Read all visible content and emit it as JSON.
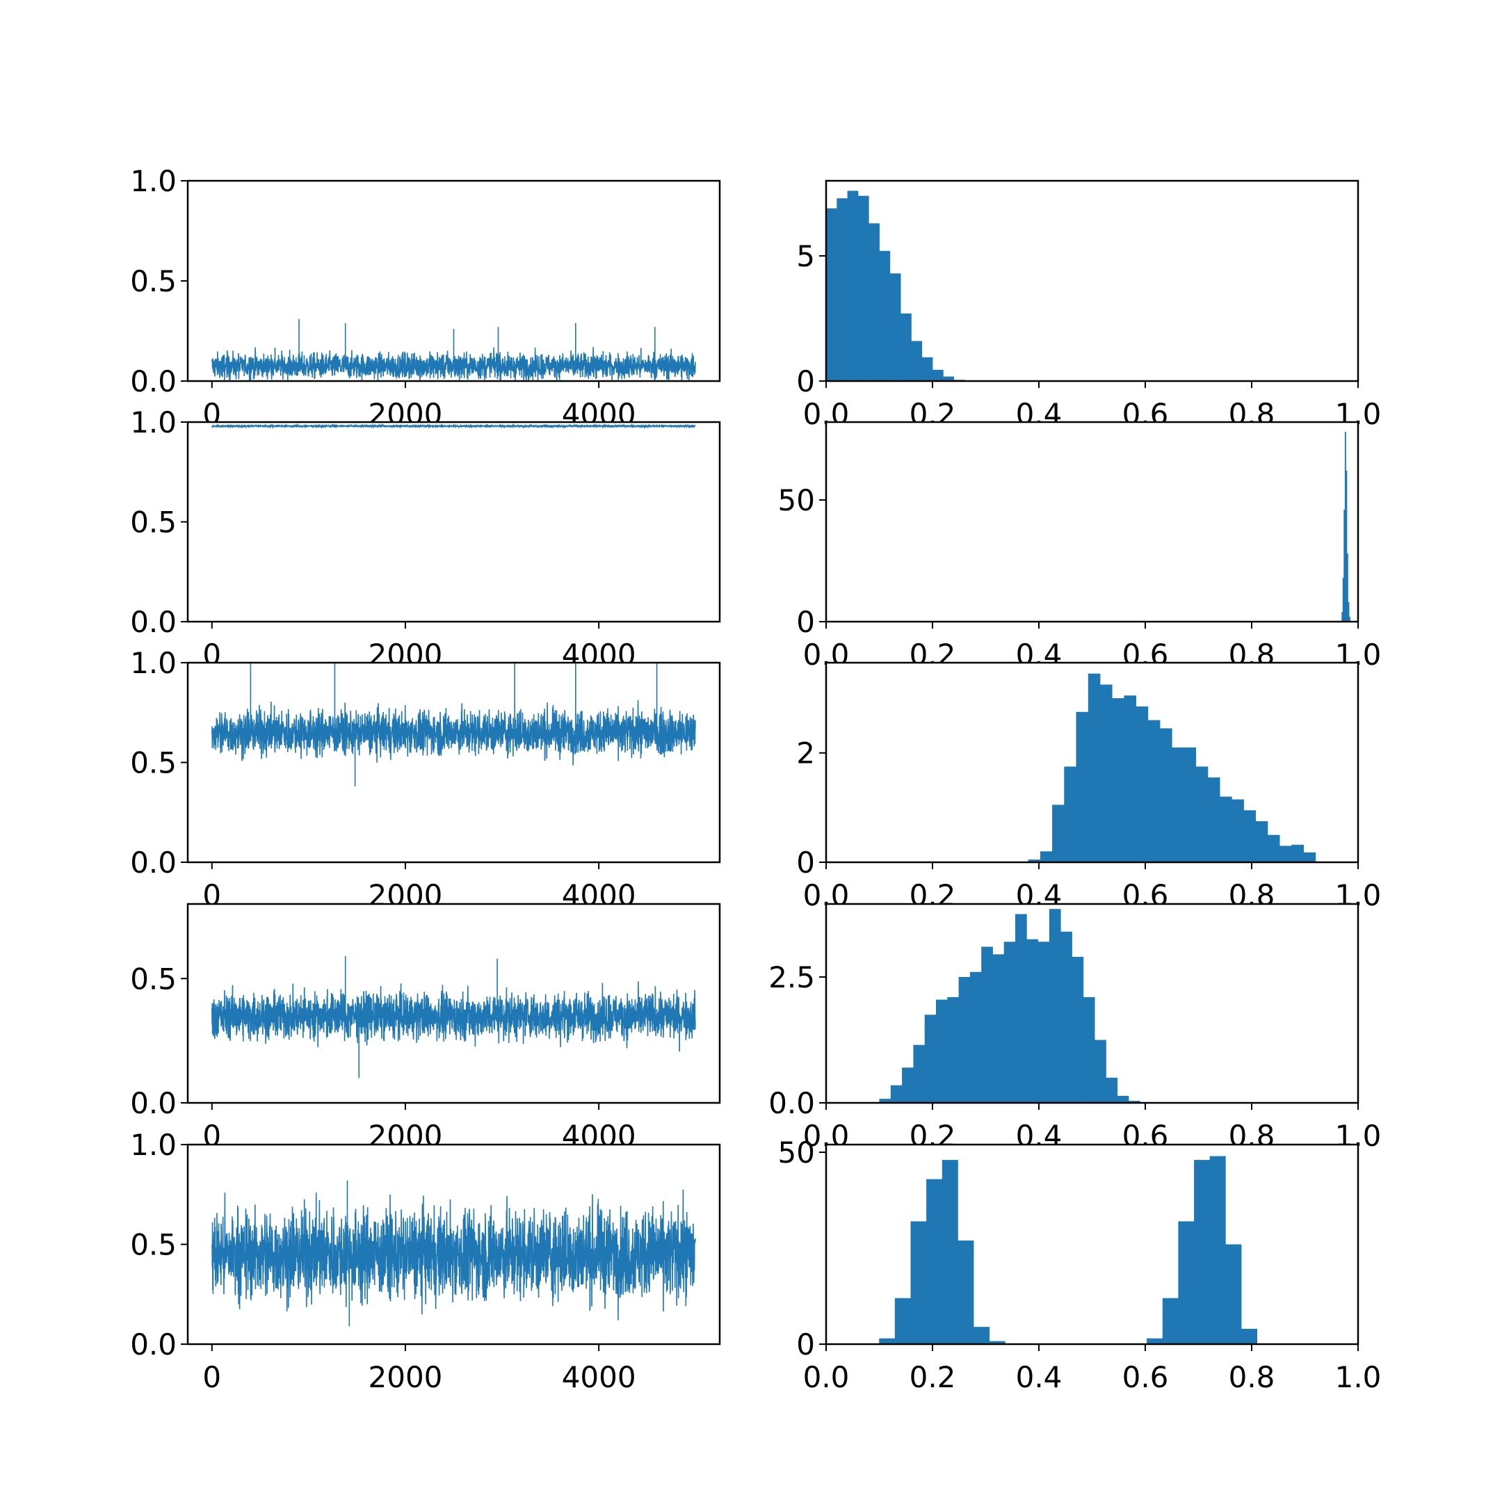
{
  "figure": {
    "rows": 5,
    "cols": 2,
    "accent_color": "#1f77b4"
  },
  "chart_data": [
    {
      "type": "line",
      "panel": "trace-1",
      "xticks": [
        "0",
        "2000",
        "4000"
      ],
      "yticks": [
        "0.0",
        "0.5",
        "1.0"
      ],
      "xlim": [
        -250,
        5250
      ],
      "ylim": [
        0,
        1
      ],
      "n_samples": 5000,
      "trace": {
        "mean": 0.075,
        "lo": 0.0,
        "hi": 0.31,
        "spread": 0.07,
        "spikes": [
          [
            900,
            0.31
          ],
          [
            1380,
            0.29
          ],
          [
            2500,
            0.26
          ],
          [
            2960,
            0.27
          ],
          [
            3760,
            0.29
          ],
          [
            4580,
            0.27
          ]
        ]
      }
    },
    {
      "type": "bar",
      "panel": "hist-1",
      "xticks": [
        "0.0",
        "0.2",
        "0.4",
        "0.6",
        "0.8",
        "1.0"
      ],
      "yticks": [
        "0",
        "5"
      ],
      "xlim": [
        0,
        1
      ],
      "ylim": [
        0,
        8
      ],
      "bin_edges_start": 0.0,
      "bin_width": 0.02,
      "values": [
        6.9,
        7.3,
        7.6,
        7.4,
        6.3,
        5.2,
        4.3,
        2.7,
        1.6,
        0.95,
        0.45,
        0.18,
        0.05,
        0.02
      ]
    },
    {
      "type": "line",
      "panel": "trace-2",
      "xticks": [
        "0",
        "2000",
        "4000"
      ],
      "yticks": [
        "0.0",
        "0.5",
        "1.0"
      ],
      "xlim": [
        -250,
        5250
      ],
      "ylim": [
        0,
        1
      ],
      "n_samples": 5000,
      "trace": {
        "mean": 0.98,
        "lo": 0.97,
        "hi": 0.99,
        "spread": 0.004,
        "spikes": []
      }
    },
    {
      "type": "bar",
      "panel": "hist-2",
      "xticks": [
        "0.0",
        "0.2",
        "0.4",
        "0.6",
        "0.8",
        "1.0"
      ],
      "yticks": [
        "0",
        "50"
      ],
      "xlim": [
        0,
        1
      ],
      "ylim": [
        0,
        82
      ],
      "bin_edges_start": 0.969,
      "bin_width": 0.002,
      "values": [
        4,
        18,
        46,
        78,
        62,
        28,
        8,
        2
      ]
    },
    {
      "type": "line",
      "panel": "trace-3",
      "xticks": [
        "0",
        "2000",
        "4000"
      ],
      "yticks": [
        "0.0",
        "0.5",
        "1.0"
      ],
      "xlim": [
        -250,
        5250
      ],
      "ylim": [
        0,
        1
      ],
      "n_samples": 5000,
      "trace": {
        "mean": 0.65,
        "lo": 0.38,
        "hi": 1.0,
        "spread": 0.12,
        "spikes": [
          [
            400,
            1.0
          ],
          [
            1270,
            1.0
          ],
          [
            1480,
            0.38
          ],
          [
            3130,
            1.0
          ],
          [
            3760,
            1.0
          ],
          [
            4600,
            1.0
          ]
        ]
      }
    },
    {
      "type": "bar",
      "panel": "hist-3",
      "xticks": [
        "0.0",
        "0.2",
        "0.4",
        "0.6",
        "0.8",
        "1.0"
      ],
      "yticks": [
        "0",
        "2"
      ],
      "xlim": [
        0,
        1
      ],
      "ylim": [
        0,
        3.65
      ],
      "bin_edges_start": 0.38,
      "bin_width": 0.0225,
      "values": [
        0.05,
        0.2,
        1.05,
        1.75,
        2.75,
        3.45,
        3.25,
        3.0,
        3.05,
        2.85,
        2.6,
        2.45,
        2.1,
        2.1,
        1.75,
        1.55,
        1.2,
        1.15,
        0.95,
        0.75,
        0.5,
        0.3,
        0.32,
        0.18
      ]
    },
    {
      "type": "line",
      "panel": "trace-4",
      "xticks": [
        "0",
        "2000",
        "4000"
      ],
      "yticks": [
        "0.0",
        "0.5"
      ],
      "xlim": [
        -250,
        5250
      ],
      "ylim": [
        0,
        0.8
      ],
      "n_samples": 5000,
      "trace": {
        "mean": 0.35,
        "lo": 0.08,
        "hi": 0.59,
        "spread": 0.1,
        "spikes": [
          [
            1380,
            0.59
          ],
          [
            2950,
            0.58
          ],
          [
            1520,
            0.1
          ]
        ]
      }
    },
    {
      "type": "bar",
      "panel": "hist-4",
      "xticks": [
        "0.0",
        "0.2",
        "0.4",
        "0.6",
        "0.8",
        "1.0"
      ],
      "yticks": [
        "0.0",
        "2.5"
      ],
      "xlim": [
        0,
        1
      ],
      "ylim": [
        0,
        3.95
      ],
      "bin_edges_start": 0.1,
      "bin_width": 0.0213,
      "values": [
        0.08,
        0.35,
        0.7,
        1.15,
        1.75,
        2.05,
        2.1,
        2.5,
        2.6,
        3.1,
        2.95,
        3.2,
        3.75,
        3.25,
        3.2,
        3.85,
        3.4,
        2.9,
        2.1,
        1.25,
        0.5,
        0.14,
        0.04
      ]
    },
    {
      "type": "line",
      "panel": "trace-5",
      "xticks": [
        "0",
        "2000",
        "4000"
      ],
      "yticks": [
        "0.0",
        "0.5",
        "1.0"
      ],
      "xlim": [
        -250,
        5250
      ],
      "ylim": [
        0,
        1
      ],
      "n_samples": 5000,
      "trace": {
        "mean": 0.45,
        "lo": 0.09,
        "hi": 0.82,
        "spread": 0.24,
        "spikes": [
          [
            1400,
            0.82
          ],
          [
            1420,
            0.09
          ]
        ]
      }
    },
    {
      "type": "bar",
      "panel": "hist-5",
      "xticks": [
        "0.0",
        "0.2",
        "0.4",
        "0.6",
        "0.8",
        "1.0"
      ],
      "yticks": [
        "0",
        "50"
      ],
      "xlim": [
        0,
        1
      ],
      "ylim": [
        0,
        52
      ],
      "bin_edges_start": 0.07,
      "bin_width": 0.0296,
      "values": [
        0,
        1.5,
        12,
        32,
        43,
        48,
        27,
        4.5,
        0.8,
        0,
        0,
        0,
        0,
        0,
        0,
        0,
        0,
        0,
        1.5,
        12,
        32,
        48,
        49,
        26,
        4,
        0
      ]
    }
  ]
}
